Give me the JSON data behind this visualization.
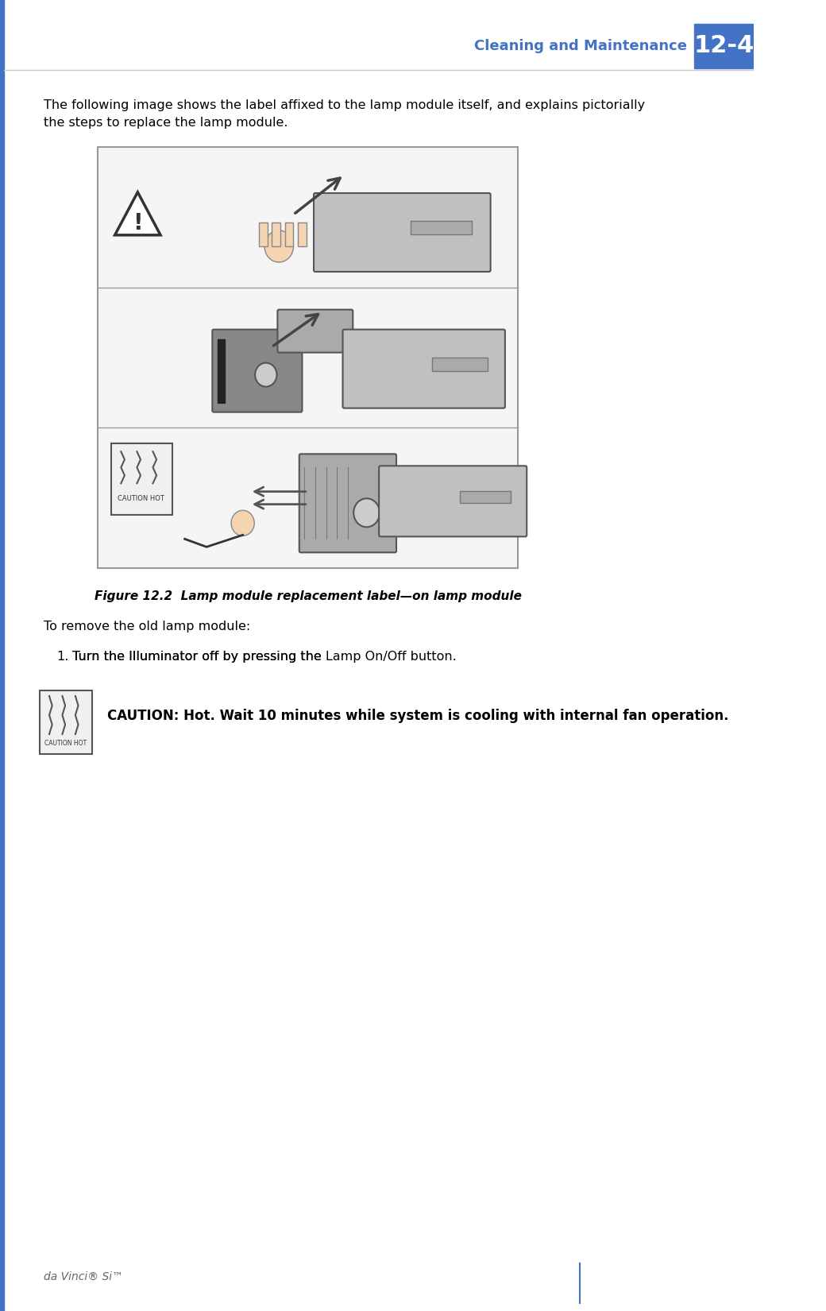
{
  "page_width": 10.4,
  "page_height": 16.5,
  "dpi": 100,
  "bg_color": "#ffffff",
  "header_section_color": "#4472C4",
  "header_text": "Cleaning and Maintenance",
  "header_num": "12-4",
  "header_text_color": "#4472C4",
  "header_num_color": "#ffffff",
  "left_bar_color": "#4472C4",
  "body_text_1": "The following image shows the label affixed to the lamp module itself, and explains pictorially\nthe steps to replace the lamp module.",
  "figure_caption": "Figure 12.2  Lamp module replacement label—on lamp module",
  "step_intro": "To remove the old lamp module:",
  "step_1_normal": "Turn the Illuminator off by pressing the ",
  "step_1_bold": "Lamp On/Off",
  "step_1_end": " button.",
  "caution_bold": "CAUTION: Hot. Wait 10 minutes while system is cooling with internal fan operation.",
  "footer_text": "da Vinci® Si™",
  "footer_line_color": "#4472C4",
  "image_box_color": "#e8e8e8",
  "image_border_color": "#999999"
}
